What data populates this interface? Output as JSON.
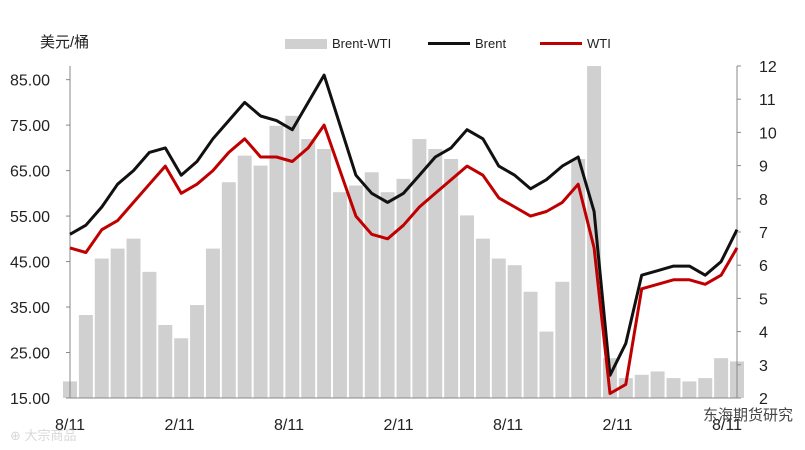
{
  "chart_data": {
    "type": "line",
    "ylabel": "美元/桶",
    "yleft": {
      "ticks": [
        "85.00",
        "75.00",
        "65.00",
        "55.00",
        "45.00",
        "35.00",
        "25.00",
        "15.00"
      ],
      "range": [
        15,
        88
      ]
    },
    "yright": {
      "ticks": [
        "12",
        "11",
        "10",
        "9",
        "8",
        "7",
        "6",
        "5",
        "4",
        "3",
        "2"
      ],
      "range": [
        2,
        12
      ]
    },
    "xticks": [
      "8/11",
      "2/11",
      "8/11",
      "2/11",
      "8/11",
      "2/11",
      "8/11"
    ],
    "x_range": [
      0,
      42
    ],
    "series": [
      {
        "name": "Brent-WTI",
        "axis": "right",
        "color": "#d0d0d0",
        "style": "bar",
        "x": [
          0,
          1,
          2,
          3,
          4,
          5,
          6,
          7,
          8,
          9,
          10,
          11,
          12,
          13,
          14,
          15,
          16,
          17,
          18,
          19,
          20,
          21,
          22,
          23,
          24,
          25,
          26,
          27,
          28,
          29,
          30,
          31,
          32,
          33,
          34,
          35,
          36,
          37,
          38,
          39,
          40,
          41,
          42
        ],
        "values": [
          2.5,
          4.5,
          6.2,
          6.5,
          6.8,
          5.8,
          4.2,
          3.8,
          4.8,
          6.5,
          8.5,
          9.3,
          9.0,
          10.2,
          10.5,
          9.8,
          9.5,
          8.2,
          8.4,
          8.8,
          8.2,
          8.6,
          9.8,
          9.5,
          9.2,
          7.5,
          6.8,
          6.2,
          6.0,
          5.2,
          4.0,
          5.5,
          9.2,
          12.0,
          3.2,
          2.6,
          2.7,
          2.8,
          2.6,
          2.5,
          2.6,
          3.2,
          3.1
        ]
      },
      {
        "name": "Brent",
        "axis": "left",
        "color": "#111111",
        "style": "line",
        "x": [
          0,
          1,
          2,
          3,
          4,
          5,
          6,
          7,
          8,
          9,
          10,
          11,
          12,
          13,
          14,
          15,
          16,
          17,
          18,
          19,
          20,
          21,
          22,
          23,
          24,
          25,
          26,
          27,
          28,
          29,
          30,
          31,
          32,
          33,
          34,
          35,
          36,
          37,
          38,
          39,
          40,
          41,
          42
        ],
        "values": [
          51,
          53,
          57,
          62,
          65,
          69,
          70,
          64,
          67,
          72,
          76,
          80,
          77,
          76,
          74,
          80,
          86,
          75,
          64,
          60,
          58,
          60,
          64,
          68,
          70,
          74,
          72,
          66,
          64,
          61,
          63,
          66,
          68,
          56,
          20,
          27,
          42,
          43,
          44,
          44,
          42,
          45,
          52
        ]
      },
      {
        "name": "WTI",
        "axis": "left",
        "color": "#c00000",
        "style": "line",
        "x": [
          0,
          1,
          2,
          3,
          4,
          5,
          6,
          7,
          8,
          9,
          10,
          11,
          12,
          13,
          14,
          15,
          16,
          17,
          18,
          19,
          20,
          21,
          22,
          23,
          24,
          25,
          26,
          27,
          28,
          29,
          30,
          31,
          32,
          33,
          34,
          35,
          36,
          37,
          38,
          39,
          40,
          41,
          42
        ],
        "values": [
          48,
          47,
          52,
          54,
          58,
          62,
          66,
          60,
          62,
          65,
          69,
          72,
          68,
          68,
          67,
          70,
          75,
          65,
          55,
          51,
          50,
          53,
          57,
          60,
          63,
          66,
          64,
          59,
          57,
          55,
          56,
          58,
          62,
          48,
          16,
          18,
          39,
          40,
          41,
          41,
          40,
          42,
          48
        ]
      }
    ]
  },
  "watermark": "东海期货研究",
  "watermark_left": "⊕ 大宗商品"
}
